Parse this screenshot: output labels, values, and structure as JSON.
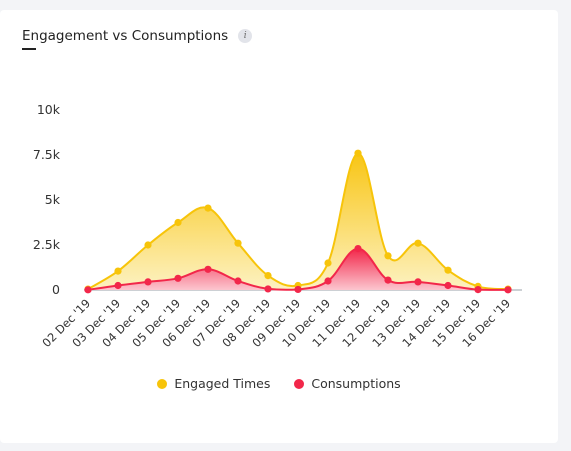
{
  "header": {
    "title": "Engagement vs Consumptions",
    "info_icon": "info-icon",
    "info_glyph": "i"
  },
  "colors": {
    "engaged": "#f7c40a",
    "consumptions": "#f2274a",
    "axis": "#9aa0a8"
  },
  "chart_data": {
    "type": "area",
    "title": "Engagement vs Consumptions",
    "xlabel": "",
    "ylabel": "",
    "categories": [
      "02 Dec '19",
      "03 Dec '19",
      "04 Dec '19",
      "05 Dec '19",
      "06 Dec '19",
      "07 Dec '19",
      "08 Dec '19",
      "09 Dec '19",
      "10 Dec '19",
      "11 Dec '19",
      "12 Dec '19",
      "13 Dec '19",
      "14 Dec '19",
      "15 Dec '19",
      "16 Dec '19"
    ],
    "y_ticks": [
      "0",
      "2.5k",
      "5k",
      "7.5k",
      "10k"
    ],
    "ylim": [
      0,
      10000
    ],
    "grid": false,
    "legend_position": "bottom",
    "series": [
      {
        "name": "Engaged Times",
        "values": [
          50,
          1050,
          2500,
          3750,
          4550,
          2600,
          800,
          250,
          1500,
          7600,
          1900,
          2600,
          1100,
          200,
          50
        ]
      },
      {
        "name": "Consumptions",
        "values": [
          10,
          250,
          450,
          650,
          1150,
          500,
          60,
          30,
          500,
          2300,
          550,
          450,
          250,
          20,
          10
        ]
      }
    ]
  }
}
